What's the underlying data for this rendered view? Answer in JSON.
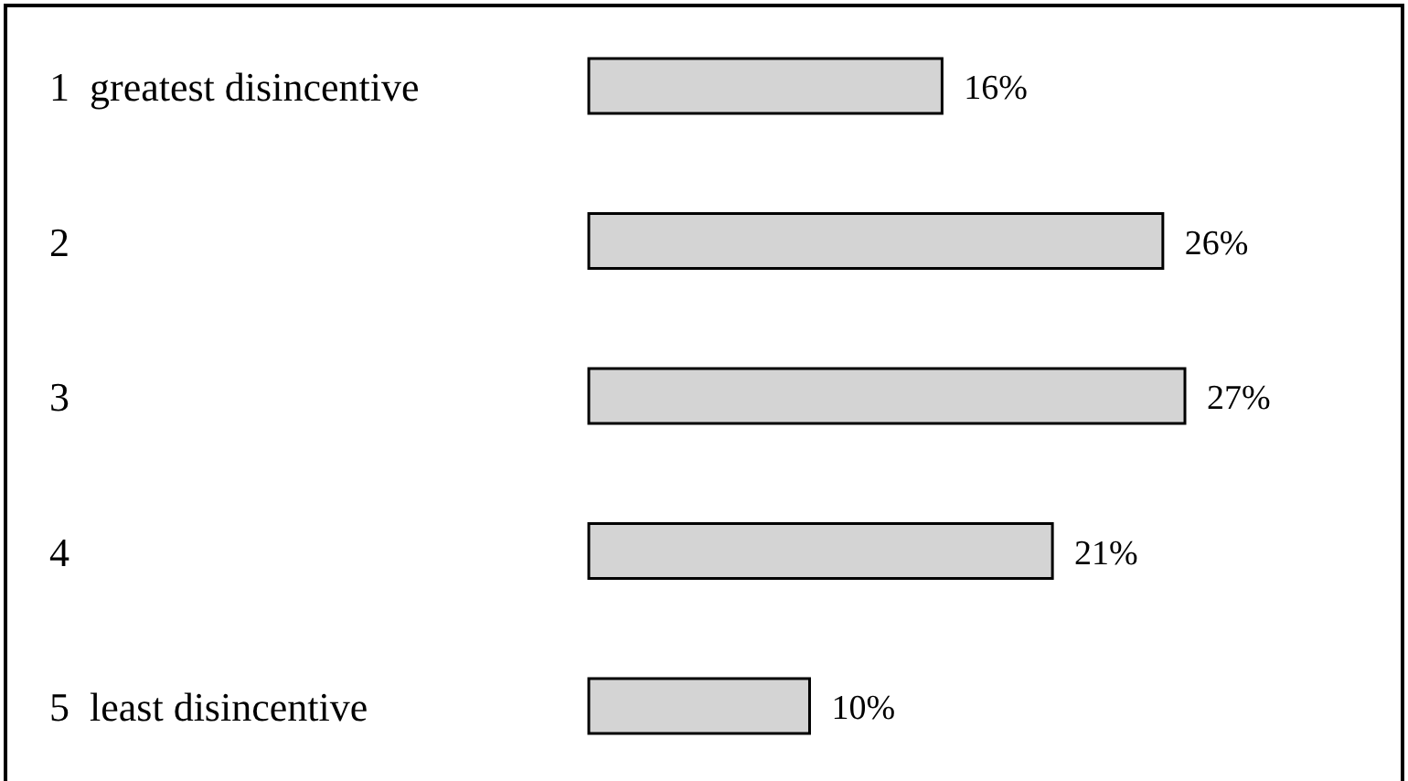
{
  "chart_data": {
    "type": "bar",
    "orientation": "horizontal",
    "categories": [
      "1  greatest disincentive",
      "2",
      "3",
      "4",
      "5  least disincentive"
    ],
    "values": [
      16,
      26,
      27,
      21,
      10
    ],
    "color": "#d4d4d4",
    "data_labels": true,
    "value_labels": [
      "16%",
      "26%",
      "27%",
      "21%",
      "10%"
    ]
  }
}
